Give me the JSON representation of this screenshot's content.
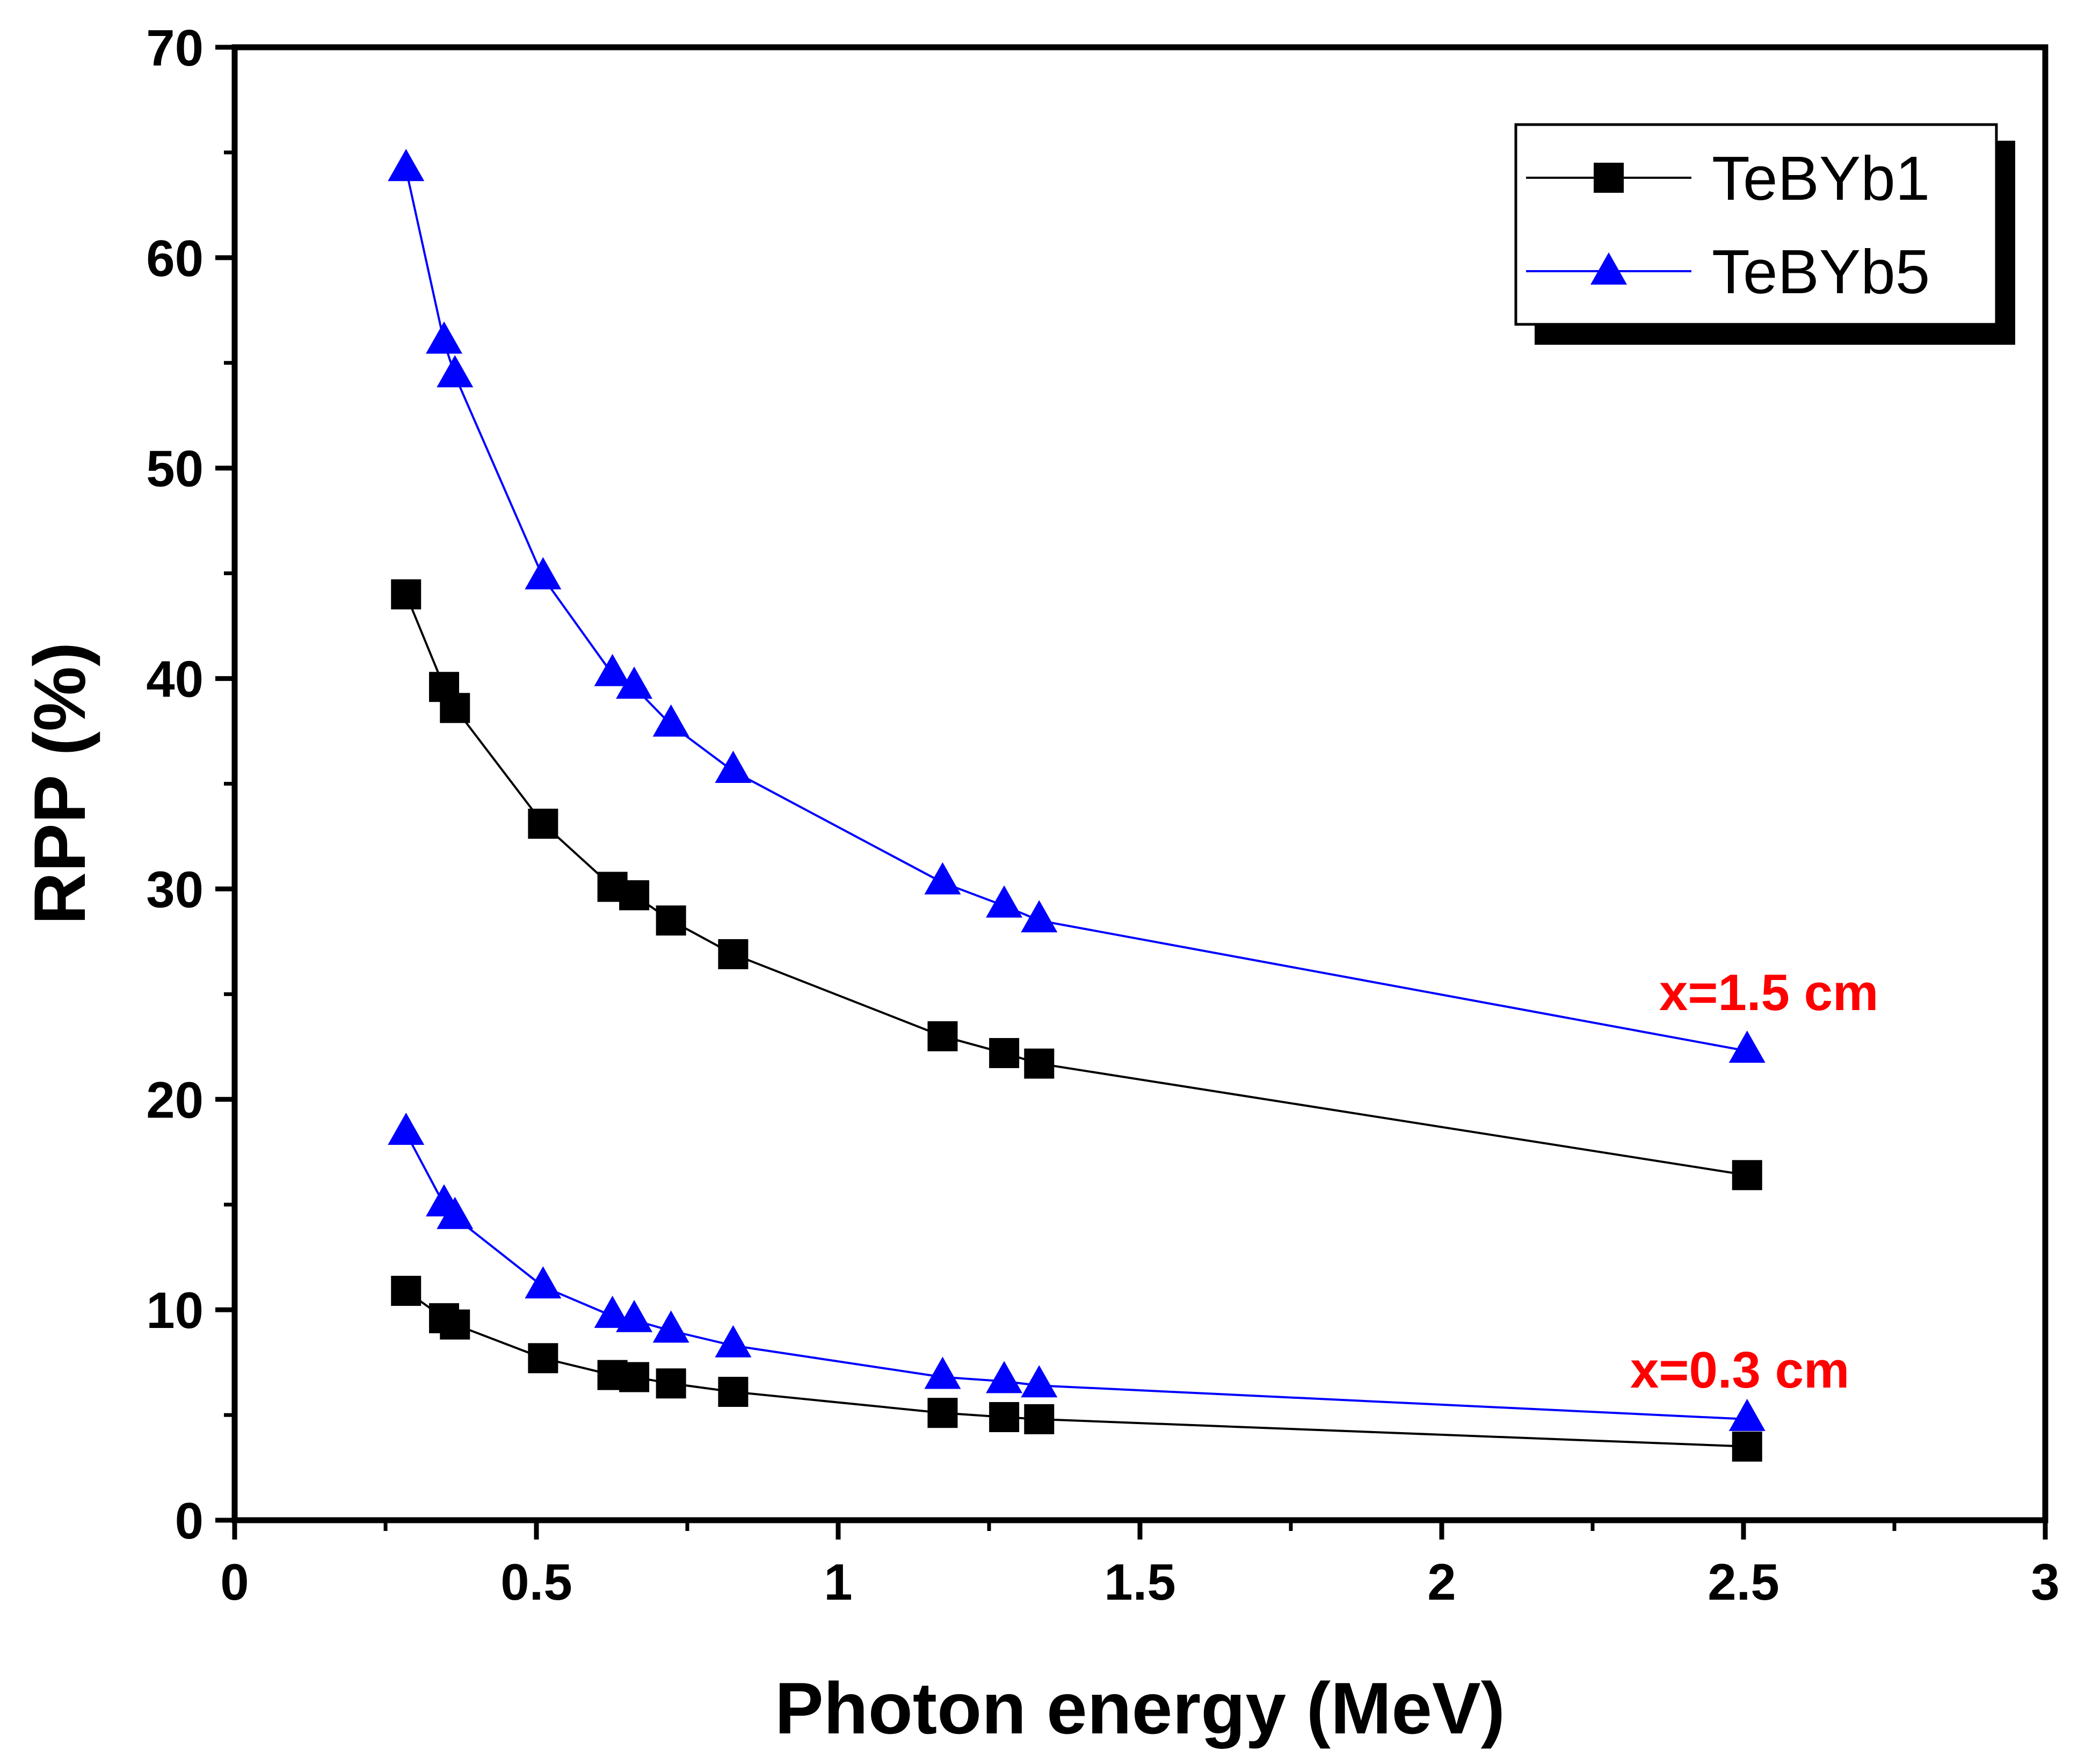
{
  "chart_data": {
    "type": "line",
    "title": "",
    "xlabel": "Photon energy (MeV)",
    "ylabel": "RPP (%)",
    "xlim": [
      0,
      3
    ],
    "ylim": [
      0,
      70
    ],
    "xticks": [
      0,
      0.5,
      1,
      1.5,
      2,
      2.5,
      3
    ],
    "xtick_labels": [
      "0",
      "0.5",
      "1",
      "1.5",
      "2",
      "2.5",
      "3"
    ],
    "yticks": [
      0,
      10,
      20,
      30,
      40,
      50,
      60,
      70
    ],
    "ytick_labels": [
      "0",
      "10",
      "20",
      "30",
      "40",
      "50",
      "60",
      "70"
    ],
    "grid": false,
    "legend_position": "top-right",
    "legend": [
      {
        "name": "TeBYb1",
        "color": "#000000",
        "marker": "square"
      },
      {
        "name": "TeBYb5",
        "color": "#0000ff",
        "marker": "triangle"
      }
    ],
    "x": [
      0.284,
      0.347,
      0.365,
      0.511,
      0.626,
      0.662,
      0.723,
      0.826,
      1.173,
      1.275,
      1.333,
      2.506
    ],
    "series": [
      {
        "name": "TeBYb1",
        "group": "x=1.5 cm",
        "color": "#000000",
        "marker": "square",
        "values": [
          44.0,
          39.6,
          38.6,
          33.1,
          30.1,
          29.7,
          28.5,
          26.9,
          23.0,
          22.2,
          21.7,
          16.4
        ]
      },
      {
        "name": "TeBYb5",
        "group": "x=1.5 cm",
        "color": "#0000ff",
        "marker": "triangle",
        "values": [
          64.2,
          56.0,
          54.4,
          44.8,
          40.2,
          39.6,
          37.8,
          35.6,
          30.3,
          29.2,
          28.5,
          22.3
        ]
      },
      {
        "name": "TeBYb1",
        "group": "x=0.3 cm",
        "color": "#000000",
        "marker": "square",
        "values": [
          10.9,
          9.6,
          9.3,
          7.7,
          6.9,
          6.8,
          6.5,
          6.1,
          5.1,
          4.9,
          4.8,
          3.5
        ]
      },
      {
        "name": "TeBYb5",
        "group": "x=0.3 cm",
        "color": "#0000ff",
        "marker": "triangle",
        "values": [
          18.4,
          15.0,
          14.4,
          11.1,
          9.7,
          9.5,
          9.0,
          8.3,
          6.8,
          6.6,
          6.4,
          4.8
        ]
      }
    ],
    "annotations": [
      {
        "text": "x=1.5 cm",
        "x": 2.56,
        "y": 25.0,
        "color": "#ff0000"
      },
      {
        "text": "x=0.3 cm",
        "x": 2.5,
        "y": 7.2,
        "color": "#ff0000"
      }
    ]
  }
}
